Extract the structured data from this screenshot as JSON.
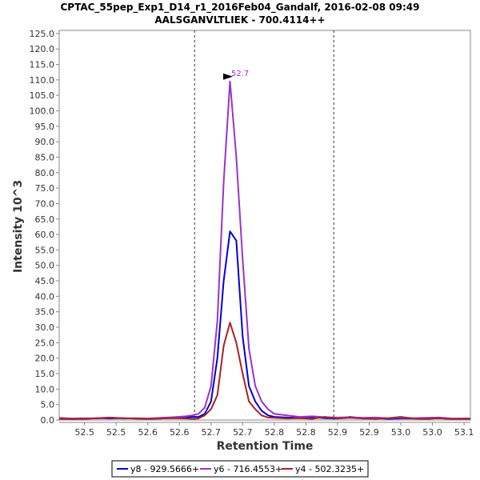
{
  "title_line1": "CPTAC_55pep_Exp1_D14_r1_2016Feb04_Gandalf, 2016-02-08 09:49",
  "title_line2": "AALSGANVLTLIEK - 700.4114++",
  "chart_data": {
    "type": "line",
    "xlabel": "Retention Time",
    "ylabel": "Intensity 10^3",
    "xlim": [
      52.46,
      53.11
    ],
    "ylim": [
      0,
      126
    ],
    "x_ticks": [
      "52.5",
      "52.6",
      "52.7",
      "52.8",
      "52.9",
      "53.0",
      "53.1"
    ],
    "x_minor_ticks": [
      "52.5",
      "52.55",
      "52.6",
      "52.65",
      "52.7",
      "52.75",
      "52.8",
      "52.85",
      "52.9",
      "52.95",
      "53.0",
      "53.05",
      "53.1"
    ],
    "x_tick_labels": [
      "52.5",
      "52.5",
      "52.6",
      "52.6",
      "52.7",
      "52.7",
      "52.8",
      "52.8",
      "52.9",
      "52.9",
      "53.0",
      "53.0",
      "53.1"
    ],
    "y_ticks": [
      "0.0",
      "5.0",
      "10.0",
      "15.0",
      "20.0",
      "25.0",
      "30.0",
      "35.0",
      "40.0",
      "45.0",
      "50.0",
      "55.0",
      "60.0",
      "65.0",
      "70.0",
      "75.0",
      "80.0",
      "85.0",
      "90.0",
      "95.0",
      "100.0",
      "105.0",
      "110.0",
      "115.0",
      "120.0",
      "125.0"
    ],
    "vlines": [
      52.674,
      52.894
    ],
    "annotation": {
      "text": "52.7",
      "x": 52.737,
      "y": 109.5,
      "color": "#9933cc"
    },
    "legend_position": "bottom",
    "series": [
      {
        "name": "y8 - 929.5666+",
        "color": "#0000dd",
        "x": [
          52.46,
          52.48,
          52.5,
          52.52,
          52.54,
          52.56,
          52.58,
          52.6,
          52.62,
          52.64,
          52.66,
          52.67,
          52.68,
          52.69,
          52.7,
          52.71,
          52.72,
          52.73,
          52.74,
          52.75,
          52.76,
          52.77,
          52.78,
          52.79,
          52.8,
          52.82,
          52.84,
          52.86,
          52.88,
          52.9,
          52.92,
          52.94,
          52.96,
          52.98,
          53.0,
          53.02,
          53.04,
          53.06,
          53.08,
          53.11
        ],
        "y": [
          0.5,
          0.3,
          0.5,
          0.6,
          0.5,
          0.6,
          0.5,
          0.4,
          0.5,
          0.7,
          0.8,
          1.0,
          1.0,
          2.0,
          6.0,
          20.0,
          45.0,
          61.0,
          58.0,
          27.0,
          11.0,
          6.0,
          3.0,
          1.5,
          1.0,
          0.8,
          0.7,
          0.9,
          0.6,
          0.5,
          1.0,
          0.5,
          0.6,
          0.4,
          0.5,
          0.5,
          0.4,
          0.6,
          0.4,
          0.5
        ]
      },
      {
        "name": "y6 - 716.4553+",
        "color": "#9933cc",
        "x": [
          52.46,
          52.48,
          52.5,
          52.52,
          52.54,
          52.56,
          52.58,
          52.6,
          52.62,
          52.64,
          52.66,
          52.67,
          52.68,
          52.69,
          52.7,
          52.71,
          52.72,
          52.73,
          52.74,
          52.75,
          52.76,
          52.77,
          52.78,
          52.79,
          52.8,
          52.82,
          52.84,
          52.86,
          52.88,
          52.9,
          52.92,
          52.94,
          52.96,
          52.98,
          53.0,
          53.02,
          53.04,
          53.06,
          53.08,
          53.11
        ],
        "y": [
          0.7,
          0.5,
          0.6,
          0.5,
          0.7,
          0.5,
          0.6,
          0.5,
          0.7,
          0.9,
          1.2,
          1.5,
          2.0,
          4.0,
          11.0,
          32.0,
          77.0,
          109.5,
          85.0,
          52.0,
          23.0,
          11.0,
          6.0,
          3.5,
          2.0,
          1.5,
          1.0,
          1.2,
          0.9,
          0.8,
          0.9,
          0.7,
          0.8,
          0.6,
          0.7,
          0.6,
          0.7,
          0.8,
          0.5,
          0.5
        ]
      },
      {
        "name": "y4 - 502.3235+",
        "color": "#aa2222",
        "x": [
          52.46,
          52.48,
          52.5,
          52.52,
          52.54,
          52.56,
          52.58,
          52.6,
          52.62,
          52.64,
          52.66,
          52.67,
          52.68,
          52.69,
          52.7,
          52.71,
          52.72,
          52.73,
          52.74,
          52.75,
          52.76,
          52.77,
          52.78,
          52.79,
          52.8,
          52.82,
          52.84,
          52.86,
          52.88,
          52.9,
          52.92,
          52.94,
          52.96,
          52.98,
          53.0,
          53.02,
          53.04,
          53.06,
          53.08,
          53.11
        ],
        "y": [
          0.3,
          0.4,
          0.3,
          0.6,
          0.8,
          0.6,
          0.5,
          0.4,
          0.5,
          0.6,
          0.5,
          0.4,
          0.5,
          1.5,
          3.5,
          8.0,
          24.0,
          31.5,
          25.0,
          15.0,
          6.0,
          3.5,
          1.5,
          0.8,
          0.7,
          0.5,
          0.6,
          0.4,
          1.0,
          0.5,
          0.7,
          0.5,
          0.4,
          0.6,
          1.0,
          0.5,
          0.4,
          0.6,
          0.3,
          0.3
        ]
      }
    ]
  }
}
